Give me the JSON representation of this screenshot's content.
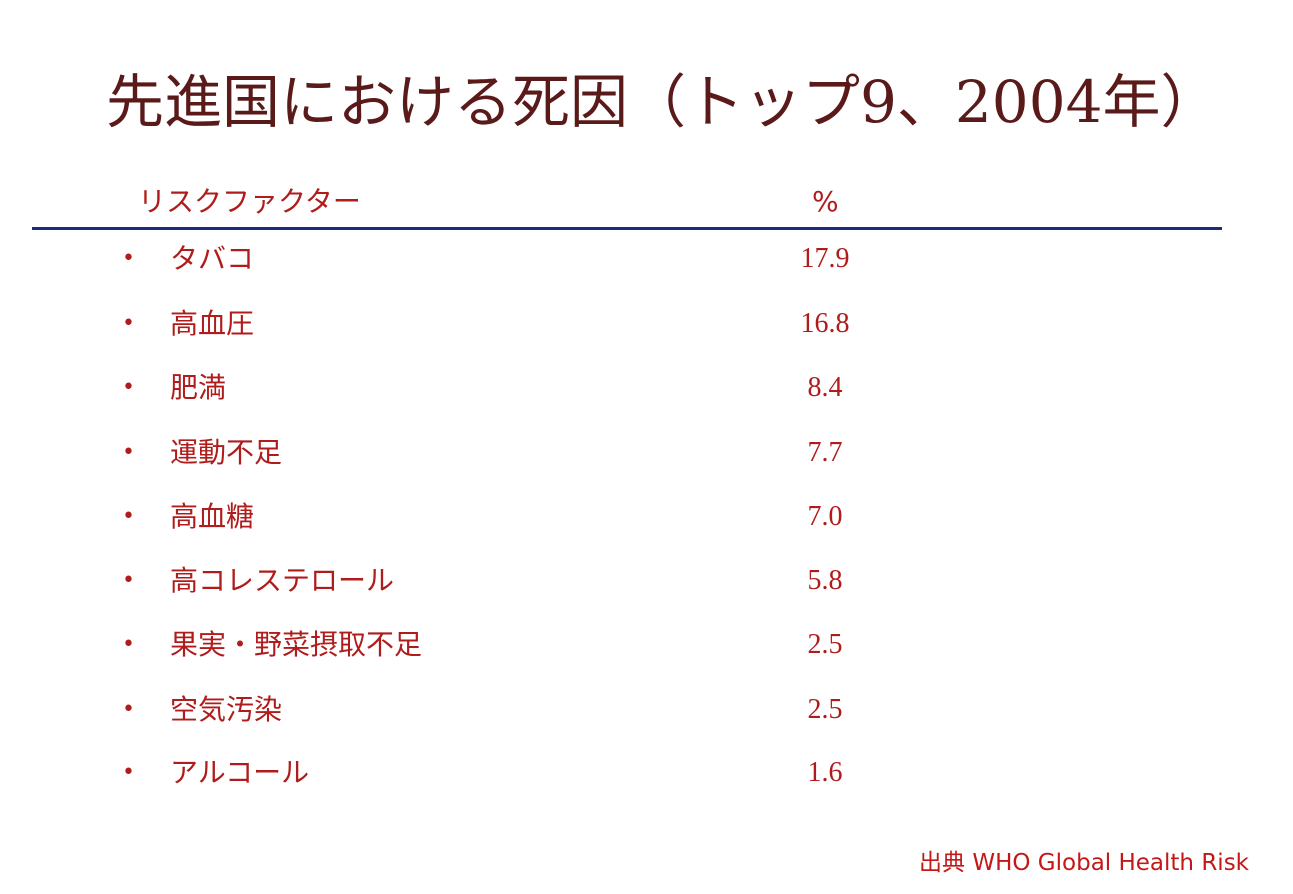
{
  "title": "先進国における死因（トップ9、2004年）",
  "table": {
    "header_factor": "リスクファクター",
    "header_percent": "%",
    "rows": [
      {
        "bullet": "•",
        "label": "タバコ",
        "value": "17.9"
      },
      {
        "bullet": "•",
        "label": "高血圧",
        "value": "16.8"
      },
      {
        "bullet": "•",
        "label": "肥満",
        "value": "8.4"
      },
      {
        "bullet": "•",
        "label": "運動不足",
        "value": "7.7"
      },
      {
        "bullet": "•",
        "label": "高血糖",
        "value": "7.0"
      },
      {
        "bullet": "•",
        "label": "高コレステロール",
        "value": "5.8"
      },
      {
        "bullet": "•",
        "label": "果実・野菜摂取不足",
        "value": "2.5"
      },
      {
        "bullet": "•",
        "label": "空気汚染",
        "value": "2.5"
      },
      {
        "bullet": "•",
        "label": "アルコール",
        "value": "1.6"
      }
    ]
  },
  "source": "出典 WHO Global Health Risk",
  "colors": {
    "title": "#5a1a1a",
    "text": "#b01c1c",
    "rule": "#1e2a7a",
    "source": "#c41818"
  }
}
